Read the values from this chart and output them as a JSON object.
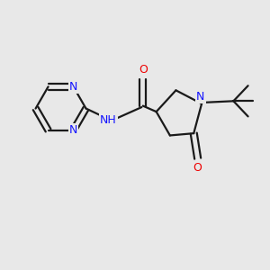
{
  "bg_color": "#e8e8e8",
  "bond_color": "#1a1a1a",
  "N_color": "#1414ff",
  "O_color": "#ee0000",
  "line_width": 1.6,
  "fig_width": 3.0,
  "fig_height": 3.0,
  "dpi": 100,
  "xlim": [
    0,
    10
  ],
  "ylim": [
    0,
    10
  ]
}
